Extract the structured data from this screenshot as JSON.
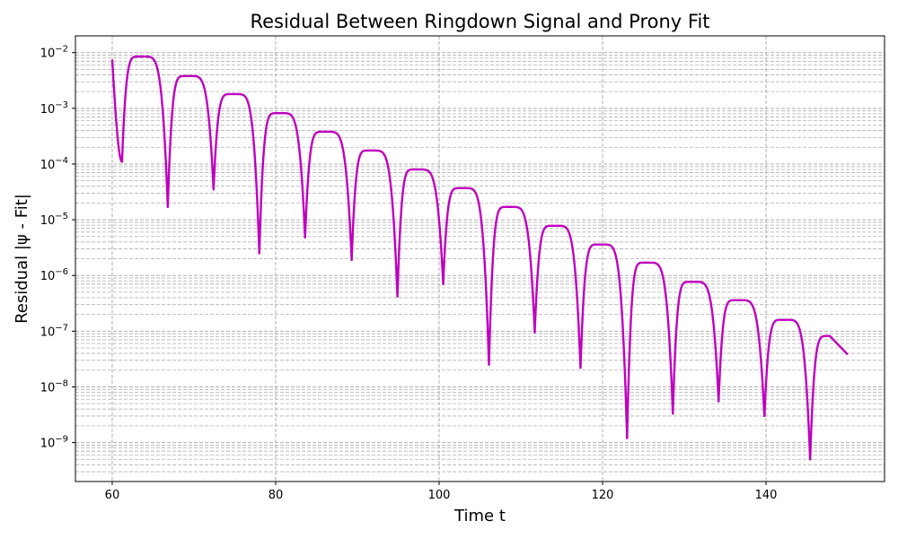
{
  "chart_data": {
    "type": "line",
    "title": "Residual Between Ringdown Signal and Prony Fit",
    "xlabel": "Time t",
    "ylabel": "Residual |ψ - Fit|",
    "xlim": [
      55.5,
      154.5
    ],
    "ylim": [
      2e-10,
      0.02
    ],
    "yscale": "log",
    "grid": true,
    "x_ticks": [
      60,
      80,
      100,
      120,
      140
    ],
    "y_ticks": [
      {
        "base": "10",
        "exp": "−9",
        "value": 1e-09
      },
      {
        "base": "10",
        "exp": "−8",
        "value": 1e-08
      },
      {
        "base": "10",
        "exp": "−7",
        "value": 1e-07
      },
      {
        "base": "10",
        "exp": "−6",
        "value": 1e-06
      },
      {
        "base": "10",
        "exp": "−5",
        "value": 1e-05
      },
      {
        "base": "10",
        "exp": "−4",
        "value": 0.0001
      },
      {
        "base": "10",
        "exp": "−3",
        "value": 0.001
      },
      {
        "base": "10",
        "exp": "−2",
        "value": 0.01
      }
    ],
    "series": [
      {
        "color": "#bf00bf",
        "x_start": 60,
        "x_end": 150,
        "start_value": 0.0075,
        "end_value": 3.8e-08,
        "minima": [
          {
            "x": 61.2,
            "y": 0.00011
          },
          {
            "x": 66.8,
            "y": 1.7e-05
          },
          {
            "x": 72.4,
            "y": 3.5e-05
          },
          {
            "x": 78.0,
            "y": 2.5e-06
          },
          {
            "x": 83.6,
            "y": 4.8e-06
          },
          {
            "x": 89.3,
            "y": 1.9e-06
          },
          {
            "x": 94.9,
            "y": 4.2e-07
          },
          {
            "x": 100.5,
            "y": 7e-07
          },
          {
            "x": 106.1,
            "y": 2.5e-08
          },
          {
            "x": 111.7,
            "y": 9.5e-08
          },
          {
            "x": 117.3,
            "y": 2.2e-08
          },
          {
            "x": 123.0,
            "y": 1.2e-09
          },
          {
            "x": 128.6,
            "y": 3.3e-09
          },
          {
            "x": 134.2,
            "y": 5.5e-09
          },
          {
            "x": 139.8,
            "y": 3e-09
          },
          {
            "x": 145.4,
            "y": 5e-10
          }
        ],
        "maxima": [
          {
            "x": 63.5,
            "y": 0.0085
          },
          {
            "x": 69.2,
            "y": 0.0038
          },
          {
            "x": 74.8,
            "y": 0.0018
          },
          {
            "x": 80.4,
            "y": 0.00082
          },
          {
            "x": 86.0,
            "y": 0.00038
          },
          {
            "x": 91.6,
            "y": 0.000175
          },
          {
            "x": 97.2,
            "y": 8e-05
          },
          {
            "x": 102.8,
            "y": 3.7e-05
          },
          {
            "x": 108.5,
            "y": 1.7e-05
          },
          {
            "x": 114.1,
            "y": 7.8e-06
          },
          {
            "x": 119.7,
            "y": 3.6e-06
          },
          {
            "x": 125.3,
            "y": 1.7e-06
          },
          {
            "x": 130.9,
            "y": 7.7e-07
          },
          {
            "x": 136.5,
            "y": 3.6e-07
          },
          {
            "x": 142.2,
            "y": 1.6e-07
          },
          {
            "x": 147.8,
            "y": 8.2e-08
          }
        ]
      }
    ]
  }
}
